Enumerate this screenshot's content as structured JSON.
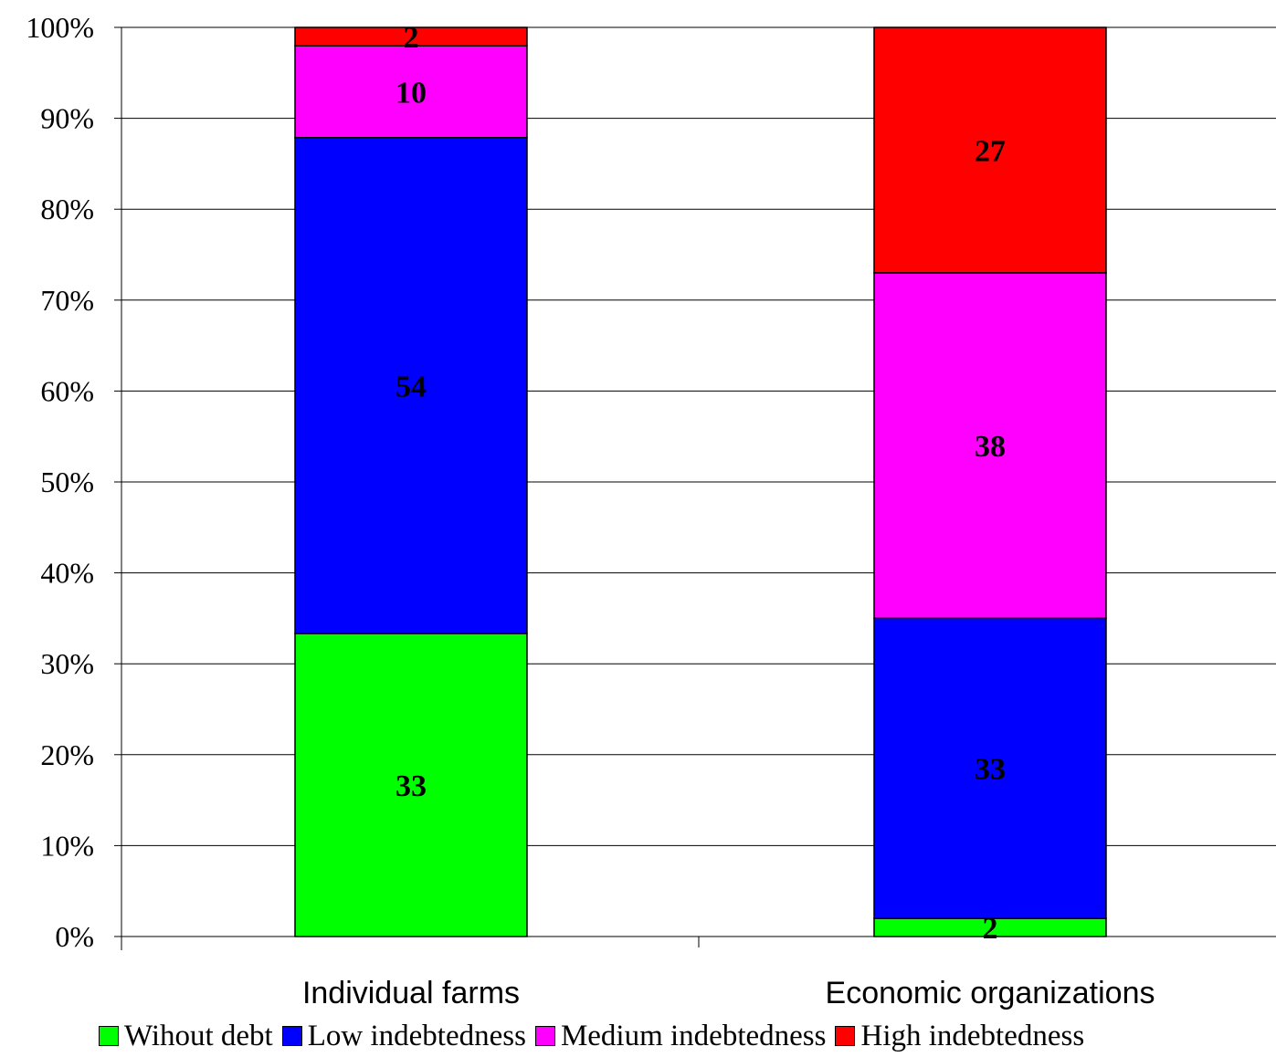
{
  "chart_data": {
    "type": "bar",
    "stacked": true,
    "percent": true,
    "categories": [
      "Individual farms",
      "Economic organizations"
    ],
    "series": [
      {
        "name": "Wihout debt",
        "color": "#00ff00",
        "values": [
          33,
          2
        ],
        "labels": [
          "33",
          "2"
        ]
      },
      {
        "name": "Low indebtedness",
        "color": "#0000ff",
        "values": [
          54,
          33
        ],
        "labels": [
          "54",
          "33"
        ]
      },
      {
        "name": "Medium indebtedness",
        "color": "#ff00ff",
        "values": [
          10,
          38
        ],
        "labels": [
          "10",
          "38"
        ]
      },
      {
        "name": "High indebtedness",
        "color": "#ff0000",
        "values": [
          2,
          27
        ],
        "labels": [
          "2",
          "27"
        ]
      }
    ],
    "ylim": [
      0,
      100
    ],
    "yticks": [
      "0%",
      "10%",
      "20%",
      "30%",
      "40%",
      "50%",
      "60%",
      "70%",
      "80%",
      "90%",
      "100%"
    ],
    "grid": true,
    "legend_position": "bottom"
  }
}
